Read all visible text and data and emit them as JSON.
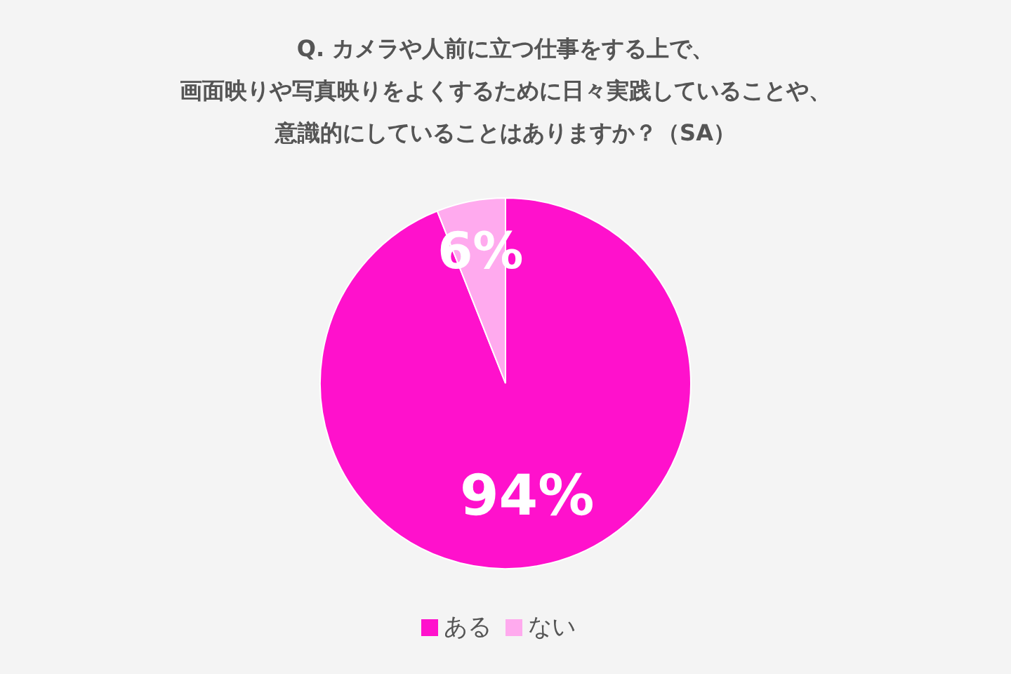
{
  "chart_data": {
    "type": "pie",
    "title": "Q. カメラや人前に立つ仕事をする上で、画面映りや写真映りをよくするために日々実践していることや、意識的にしていることはありますか？（SA）",
    "categories": [
      "ある",
      "ない"
    ],
    "values": [
      94,
      6
    ],
    "colors": [
      "#ff11cc",
      "#ffaaee"
    ],
    "value_labels": [
      "94%",
      "6%"
    ],
    "legend": "bottom"
  }
}
